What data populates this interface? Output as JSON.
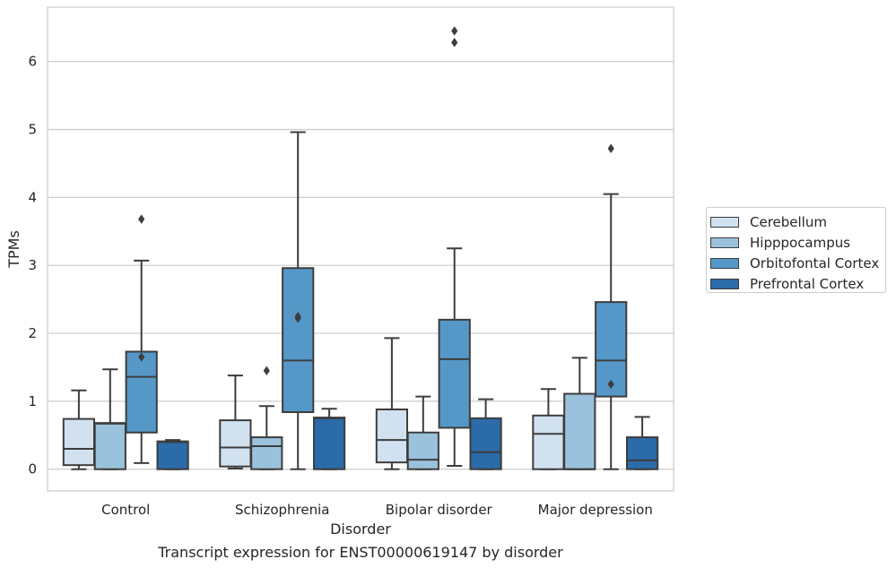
{
  "chart_data": {
    "type": "box",
    "title": "",
    "caption": "Transcript expression for ENST00000619147 by disorder",
    "xlabel": "Disorder",
    "ylabel": "TPMs",
    "ylim": [
      -0.32,
      6.8
    ],
    "yticks": [
      0,
      1,
      2,
      3,
      4,
      5,
      6
    ],
    "grid": "horizontal",
    "legend_position": "right",
    "categories": [
      "Control",
      "Schizophrenia",
      "Bipolar disorder",
      "Major depression"
    ],
    "series": [
      {
        "name": "Cerebellum",
        "color": "#d1e1f0",
        "boxes": [
          {
            "min": 0.0,
            "q1": 0.06,
            "median": 0.3,
            "q3": 0.74,
            "max": 1.16,
            "outliers": []
          },
          {
            "min": 0.01,
            "q1": 0.04,
            "median": 0.32,
            "q3": 0.72,
            "max": 1.38,
            "outliers": []
          },
          {
            "min": 0.0,
            "q1": 0.1,
            "median": 0.43,
            "q3": 0.88,
            "max": 1.93,
            "outliers": []
          },
          {
            "min": 0.0,
            "q1": 0.0,
            "median": 0.52,
            "q3": 0.79,
            "max": 1.18,
            "outliers": []
          }
        ]
      },
      {
        "name": "Hipppocampus",
        "color": "#9bc2dc",
        "boxes": [
          {
            "min": 0.0,
            "q1": 0.0,
            "median": 0.67,
            "q3": 0.68,
            "max": 1.47,
            "outliers": []
          },
          {
            "min": 0.0,
            "q1": 0.0,
            "median": 0.34,
            "q3": 0.47,
            "max": 0.93,
            "outliers": [
              1.45
            ]
          },
          {
            "min": 0.0,
            "q1": 0.0,
            "median": 0.14,
            "q3": 0.54,
            "max": 1.07,
            "outliers": []
          },
          {
            "min": 0.0,
            "q1": 0.0,
            "median": 0.0,
            "q3": 1.11,
            "max": 1.64,
            "outliers": []
          }
        ]
      },
      {
        "name": "Orbitofontal Cortex",
        "color": "#5598c8",
        "boxes": [
          {
            "min": 0.09,
            "q1": 0.54,
            "median": 1.36,
            "q3": 1.73,
            "max": 3.07,
            "outliers": [
              1.65,
              3.68
            ]
          },
          {
            "min": 0.0,
            "q1": 0.84,
            "median": 1.6,
            "q3": 2.96,
            "max": 4.96,
            "outliers": [
              2.22,
              2.25
            ]
          },
          {
            "min": 0.05,
            "q1": 0.61,
            "median": 1.62,
            "q3": 2.2,
            "max": 3.25,
            "outliers": [
              6.28,
              6.45
            ]
          },
          {
            "min": 0.0,
            "q1": 1.07,
            "median": 1.6,
            "q3": 2.46,
            "max": 4.05,
            "outliers": [
              4.72,
              1.25
            ]
          }
        ]
      },
      {
        "name": "Prefrontal Cortex",
        "color": "#2b6ba9",
        "boxes": [
          {
            "min": 0.0,
            "q1": 0.0,
            "median": 0.4,
            "q3": 0.41,
            "max": 0.43,
            "outliers": []
          },
          {
            "min": 0.0,
            "q1": 0.0,
            "median": 0.75,
            "q3": 0.76,
            "max": 0.89,
            "outliers": []
          },
          {
            "min": 0.0,
            "q1": 0.0,
            "median": 0.25,
            "q3": 0.75,
            "max": 1.03,
            "outliers": []
          },
          {
            "min": 0.0,
            "q1": 0.0,
            "median": 0.13,
            "q3": 0.47,
            "max": 0.77,
            "outliers": []
          }
        ]
      }
    ]
  }
}
